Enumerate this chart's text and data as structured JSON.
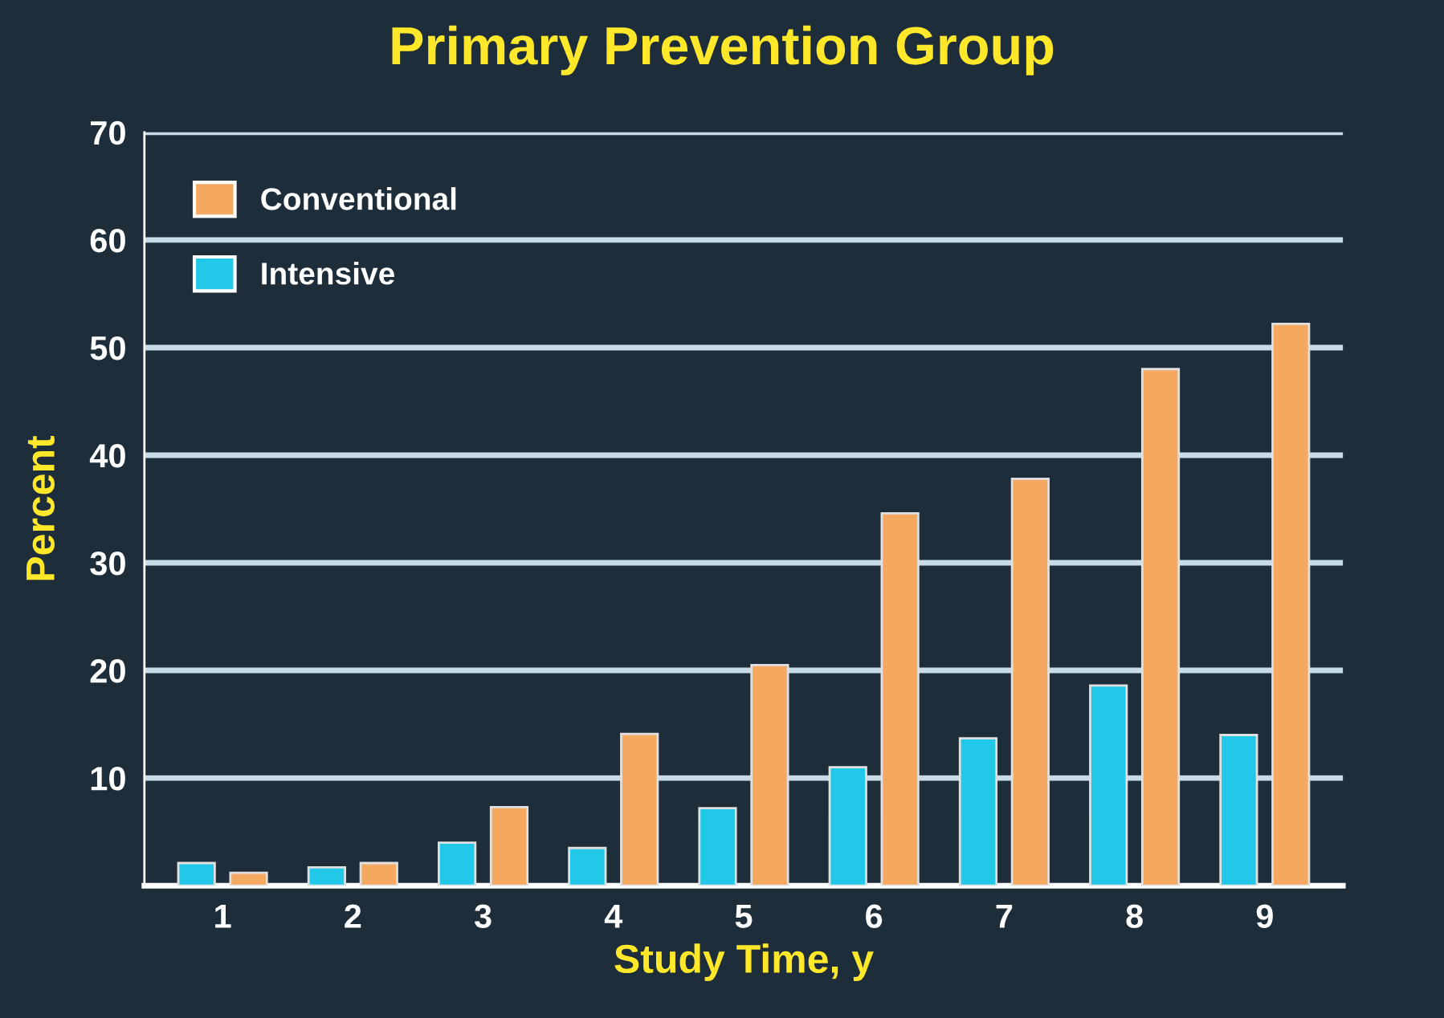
{
  "chart_data": {
    "type": "bar",
    "title": "Primary Prevention Group",
    "xlabel": "Study Time, y",
    "ylabel": "Percent",
    "categories": [
      "1",
      "2",
      "3",
      "4",
      "5",
      "6",
      "7",
      "8",
      "9"
    ],
    "series": [
      {
        "name": "Intensive",
        "color": "#22c8e8",
        "values": [
          2.1,
          1.7,
          4.0,
          3.5,
          7.2,
          11.0,
          13.7,
          18.6,
          14.0
        ]
      },
      {
        "name": "Conventional",
        "color": "#f4a860",
        "values": [
          1.2,
          2.1,
          7.3,
          14.1,
          20.5,
          34.6,
          37.8,
          48.0,
          52.2
        ]
      }
    ],
    "ylim": [
      0,
      70
    ],
    "yticks": [
      10,
      20,
      30,
      40,
      50,
      60,
      70
    ],
    "grid": "y",
    "legend": "top left"
  }
}
